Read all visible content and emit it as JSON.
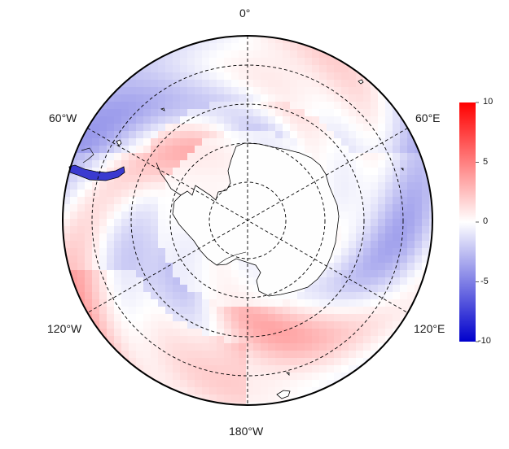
{
  "map": {
    "projection": "south-polar-stereographic",
    "meridian_labels": {
      "top": "0°",
      "upper_left": "60°W",
      "upper_right": "60°E",
      "lower_left": "120°W",
      "lower_right": "120°E",
      "bottom": "180°W"
    },
    "graticule": {
      "circles": 4,
      "meridians": 6,
      "style": "dashed"
    }
  },
  "colorbar": {
    "ticks": [
      "10",
      "5",
      "0",
      "-5",
      "-10"
    ],
    "min": -10,
    "max": 10,
    "colors": {
      "high": "#ff0000",
      "mid": "#ffffff",
      "low": "#0000cc"
    }
  }
}
